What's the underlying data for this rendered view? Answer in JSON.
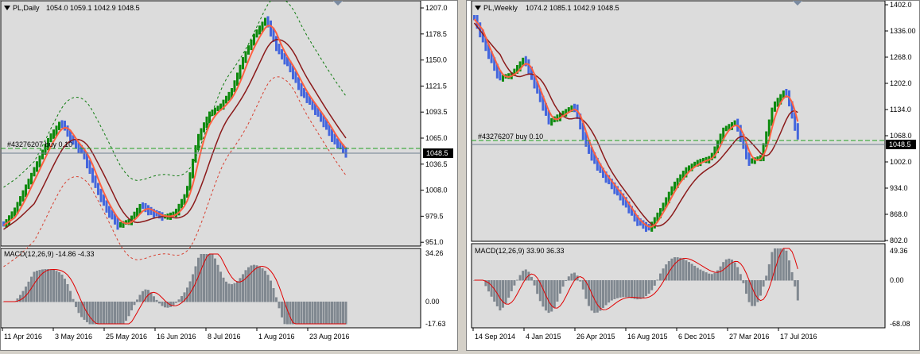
{
  "colors": {
    "bg": "#dcdcdc",
    "bull": "#0e8a0e",
    "bear": "#4466dd",
    "bull_light": "#ff6e50",
    "bear_light": "#ff6e50",
    "ma_fast": "#ff6040",
    "ma_slow": "#8b1a1a",
    "env": "#d84030",
    "env_up": "#0e7a0e",
    "macd_hist": "#808890",
    "macd_signal": "#e00000",
    "level": "#20a020",
    "pricebox": "#000000"
  },
  "left": {
    "title": "PL,Daily",
    "ohlc": "1054.0 1059.1 1042.9 1048.5",
    "price_scale": [
      "1207.0",
      "1178.5",
      "1150.0",
      "1121.5",
      "1093.5",
      "1065.0",
      "1036.5",
      "1008.0",
      "979.5",
      "951.0"
    ],
    "current_price": "1048.5",
    "order_label": "#43276207 buy 0.10",
    "macd_title": "MACD(12,26,9) -14.86 -4.33",
    "macd_scale": [
      "34.26",
      "0.00",
      "-17.63"
    ],
    "date_labels": [
      "11 Apr 2016",
      "3 May 2016",
      "25 May 2016",
      "16 Jun 2016",
      "8 Jul 2016",
      "1 Aug 2016",
      "23 Aug 2016"
    ]
  },
  "right": {
    "title": "PL,Weekly",
    "ohlc": "1074.2 1085.1 1042.9 1048.5",
    "price_scale": [
      "1402.0",
      "1336.00",
      "1268.0",
      "1202.0",
      "1134.0",
      "1068.0",
      "1002.0",
      "934.0",
      "868.0",
      "802.0"
    ],
    "current_price": "1048.5",
    "order_label": "#43276207 buy 0.10",
    "macd_title": "MACD(12,26,9) 33.90 36.33",
    "macd_scale": [
      "49.36",
      "0.00",
      "-68.08"
    ],
    "date_labels": [
      "14 Sep 2014",
      "4 Jan 2015",
      "26 Apr 2015",
      "16 Aug 2015",
      "6 Dec 2015",
      "27 Mar 2016",
      "17 Jul 2016"
    ]
  }
}
